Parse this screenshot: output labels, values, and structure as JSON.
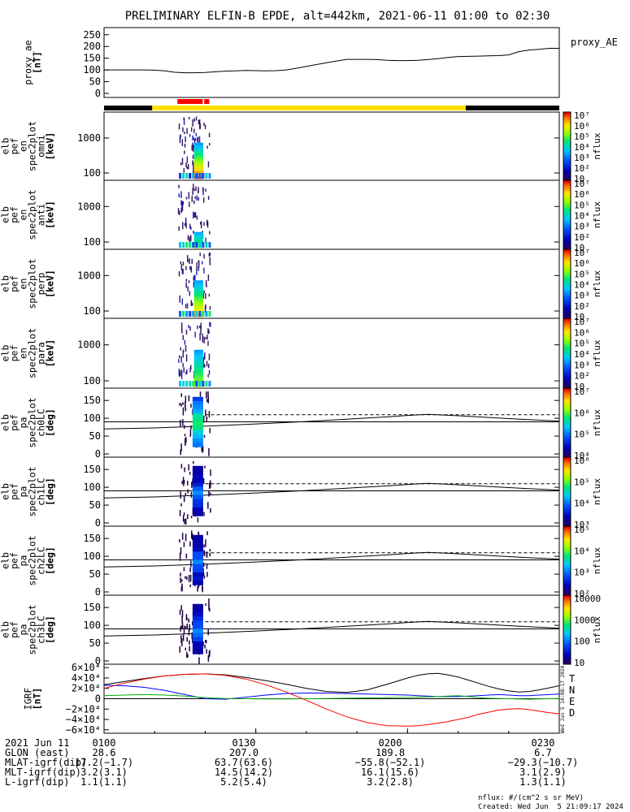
{
  "title": "PRELIMINARY ELFIN-B EPDE, alt=442km, 2021-06-11 01:00 to 02:30",
  "chart_data": [
    {
      "type": "line",
      "ylabel": [
        "proxy_ae",
        "[nT]"
      ],
      "yticks": [
        "250",
        "200",
        "150",
        "100",
        "50",
        "0"
      ],
      "ylim": [
        0,
        270
      ],
      "legend": "proxy_AE",
      "x": [
        0,
        2,
        4,
        6,
        8,
        10,
        12,
        14,
        16,
        18,
        20,
        22,
        24,
        26,
        28,
        30,
        32,
        34,
        36,
        38,
        40,
        42,
        44,
        46,
        48,
        50,
        52,
        54,
        56,
        58,
        60,
        62,
        64,
        66,
        68,
        70,
        72,
        74,
        76,
        78,
        80,
        82,
        84,
        86,
        88,
        90
      ],
      "values": [
        100,
        100,
        100,
        100,
        100,
        99,
        96,
        90,
        88,
        88,
        89,
        92,
        95,
        96,
        98,
        97,
        96,
        97,
        100,
        107,
        115,
        123,
        131,
        138,
        145,
        145,
        145,
        144,
        141,
        140,
        140,
        141,
        144,
        148,
        153,
        157,
        158,
        159,
        160,
        161,
        164,
        178,
        185,
        188,
        192,
        192
      ]
    },
    {
      "type": "heatmap",
      "ylabel": [
        "elb",
        "pef",
        "en",
        "spec2plot",
        "omni",
        "[keV]"
      ],
      "yticks": [
        "1000",
        "100"
      ],
      "colorbar": {
        "ticks": [
          "10",
          "10²",
          "10³",
          "10⁴",
          "10⁵",
          "10⁶",
          "10⁷"
        ],
        "label": "nflux"
      }
    },
    {
      "type": "heatmap",
      "ylabel": [
        "elb",
        "pef",
        "en",
        "spec2plot",
        "anti",
        "[keV]"
      ],
      "yticks": [
        "1000",
        "100"
      ],
      "colorbar": {
        "ticks": [
          "10",
          "10²",
          "10³",
          "10⁴",
          "10⁵",
          "10⁶",
          "10⁷"
        ],
        "label": "nflux"
      }
    },
    {
      "type": "heatmap",
      "ylabel": [
        "elb",
        "pef",
        "en",
        "spec2plot",
        "perp",
        "[keV]"
      ],
      "yticks": [
        "1000",
        "100"
      ],
      "colorbar": {
        "ticks": [
          "10",
          "10²",
          "10³",
          "10⁴",
          "10⁵",
          "10⁶",
          "10⁷"
        ],
        "label": "nflux"
      }
    },
    {
      "type": "heatmap",
      "ylabel": [
        "elb",
        "pef",
        "en",
        "spec2plot",
        "para",
        "[keV]"
      ],
      "yticks": [
        "1000",
        "100"
      ],
      "colorbar": {
        "ticks": [
          "10",
          "10²",
          "10³",
          "10⁴",
          "10⁵",
          "10⁶",
          "10⁷"
        ],
        "label": "nflux"
      }
    },
    {
      "type": "heatmap",
      "ylabel": [
        "elb",
        "pef",
        "pa",
        "spec2plot",
        "ch0LC",
        "[deg]"
      ],
      "yticks": [
        "150",
        "100",
        "50",
        "0"
      ],
      "colorbar": {
        "ticks": [
          "10⁴",
          "10⁵",
          "10⁶",
          "10⁷"
        ],
        "label": "nflux"
      }
    },
    {
      "type": "heatmap",
      "ylabel": [
        "elb",
        "pef",
        "pa",
        "spec2plot",
        "ch1LC",
        "[deg]"
      ],
      "yticks": [
        "150",
        "100",
        "50",
        "0"
      ],
      "colorbar": {
        "ticks": [
          "10³",
          "10⁴",
          "10⁵",
          "10⁶"
        ],
        "label": "nflux"
      }
    },
    {
      "type": "heatmap",
      "ylabel": [
        "elb",
        "pef",
        "pa",
        "spec2plot",
        "ch2LC",
        "[deg]"
      ],
      "yticks": [
        "150",
        "100",
        "50",
        "0"
      ],
      "colorbar": {
        "ticks": [
          "10²",
          "10³",
          "10⁴",
          "10⁵"
        ],
        "label": "nflux"
      }
    },
    {
      "type": "heatmap",
      "ylabel": [
        "elb",
        "pef",
        "pa",
        "spec2plot",
        "ch3LC",
        "[deg]"
      ],
      "yticks": [
        "150",
        "100",
        "50",
        "0"
      ],
      "colorbar": {
        "ticks": [
          "10",
          "100",
          "1000",
          "10000"
        ],
        "label": "nflux"
      }
    },
    {
      "type": "line",
      "ylabel": [
        "IGRF",
        "[nT]"
      ],
      "yticks": [
        "6×10⁴",
        "4×10⁴",
        "2×10⁴",
        "0",
        "−2×10⁴",
        "−4×10⁴",
        "−6×10⁴"
      ],
      "ylim": [
        -65000,
        65000
      ],
      "x": [
        0,
        4,
        8,
        12,
        16,
        20,
        24,
        28,
        32,
        36,
        40,
        44,
        48,
        52,
        56,
        60,
        62,
        64,
        66,
        68,
        70,
        72,
        74,
        76,
        78,
        80,
        82,
        84,
        86,
        88,
        90
      ],
      "series": [
        {
          "name": "T",
          "color": "#000000",
          "values": [
            27000,
            33000,
            39000,
            44000,
            47000,
            48000,
            46000,
            41000,
            35000,
            28000,
            20000,
            14000,
            12000,
            17000,
            28000,
            40000,
            45000,
            48000,
            49000,
            46000,
            42000,
            36000,
            30000,
            24000,
            19000,
            15000,
            13000,
            14000,
            17000,
            21000,
            25000
          ]
        },
        {
          "name": "N",
          "color": "#0000ff",
          "values": [
            26000,
            25000,
            22000,
            16000,
            8000,
            0,
            -1000,
            3000,
            7000,
            10000,
            11000,
            11000,
            10000,
            9000,
            8000,
            7000,
            6000,
            5000,
            4000,
            4000,
            4000,
            5000,
            6000,
            7000,
            8000,
            7000,
            6000,
            6000,
            7000,
            8000,
            9000
          ]
        },
        {
          "name": "E",
          "color": "#00b000",
          "values": [
            6000,
            7000,
            8000,
            7000,
            5000,
            2000,
            500,
            0,
            -500,
            -500,
            0,
            500,
            1000,
            1500,
            2000,
            2500,
            3000,
            3500,
            4000,
            5000,
            6000,
            4000,
            2000,
            1000,
            500,
            0,
            -500,
            -1000,
            -500,
            0,
            500
          ]
        },
        {
          "name": "D",
          "color": "#ff0000",
          "values": [
            20000,
            30000,
            38000,
            44000,
            47000,
            48000,
            45000,
            38000,
            27000,
            13000,
            -3000,
            -20000,
            -35000,
            -46000,
            -52000,
            -53000,
            -52000,
            -50000,
            -47000,
            -44000,
            -40000,
            -36000,
            -30000,
            -26000,
            -22000,
            -20000,
            -19000,
            -21000,
            -24000,
            -27000,
            -29000
          ]
        }
      ],
      "x_tick_labels": [
        "0100",
        "0130",
        "0200",
        "0230"
      ]
    }
  ],
  "footer_rows": [
    [
      "2021 Jun 11",
      "0100",
      "0130",
      "0200",
      "0230"
    ],
    [
      "GLON (east)",
      "28.6",
      "207.0",
      "189.8",
      "6.7"
    ],
    [
      "MLAT-igrf(dip)",
      "17.2(−1.7)",
      "63.7(63.6)",
      "−55.8(−52.1)",
      "−29.3(−10.7)"
    ],
    [
      "MLT-igrf(dip)",
      "3.2(3.1)",
      "14.5(14.2)",
      "16.1(15.6)",
      "3.1(2.9)"
    ],
    [
      "L-igrf(dip)",
      "1.1(1.1)",
      "5.2(5.4)",
      "3.2(2.8)",
      "1.3(1.1)"
    ]
  ],
  "credits": {
    "units": "nflux: #/(cm^2 s sr MeV)",
    "created": "Created: Wed Jun  5 21:09:17 2024",
    "side_stamp": "Wed Jun  5 14:08:17 2024"
  }
}
